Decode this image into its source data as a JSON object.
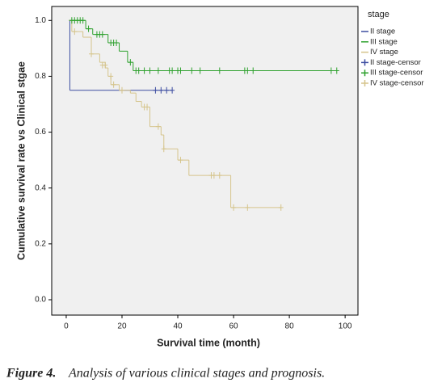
{
  "chart_data": {
    "type": "step",
    "xlabel": "Survival time (month)",
    "ylabel": "Cumulative survival rate vs Clinical stgae",
    "legend_title": "stage",
    "caption_label": "Figure 4.",
    "caption": "Analysis of various clinical stages and prognosis.",
    "xlim": [
      -5.2,
      104.6
    ],
    "ylim": [
      -0.055,
      1.05
    ],
    "xticks": [
      0,
      20,
      40,
      60,
      80,
      100
    ],
    "yticks": [
      {
        "value": 0,
        "label": "0.0"
      },
      {
        "value": 0.2,
        "label": "0.2"
      },
      {
        "value": 0.4,
        "label": "0.4"
      },
      {
        "value": 0.6,
        "label": "0.6"
      },
      {
        "value": 0.8,
        "label": "0.8"
      },
      {
        "value": 1,
        "label": "1.0"
      }
    ],
    "series": [
      {
        "name": "II stage",
        "type": "step",
        "color": "#3d4da1",
        "x": [
          1,
          1.3,
          38
        ],
        "values": [
          1.0,
          0.75,
          0.75
        ]
      },
      {
        "name": "III stage",
        "type": "step",
        "color": "#2ea12e",
        "x": [
          1,
          7,
          9.5,
          15,
          19,
          22,
          24,
          97
        ],
        "values": [
          1.0,
          0.97,
          0.95,
          0.92,
          0.89,
          0.85,
          0.82,
          0.82
        ]
      },
      {
        "name": "IV stage",
        "type": "step",
        "color": "#d5c48b",
        "x": [
          1,
          2,
          6,
          9,
          12,
          14,
          15,
          16,
          19,
          23,
          25,
          27,
          30,
          34,
          35,
          40,
          44,
          59,
          77
        ],
        "values": [
          1.0,
          0.96,
          0.94,
          0.88,
          0.85,
          0.83,
          0.8,
          0.77,
          0.75,
          0.74,
          0.71,
          0.69,
          0.62,
          0.59,
          0.54,
          0.5,
          0.445,
          0.33,
          0.33
        ]
      },
      {
        "name": "II stage-censor",
        "type": "censor",
        "color": "#3d4da1",
        "x": [
          32,
          34,
          36,
          38
        ],
        "values": [
          0.75,
          0.75,
          0.75,
          0.75
        ]
      },
      {
        "name": "III stage-censor",
        "type": "censor",
        "color": "#2ea12e",
        "x": [
          2,
          3,
          4,
          5,
          6,
          8,
          11,
          12,
          13,
          16,
          17,
          18,
          23,
          25,
          26,
          28,
          30,
          33,
          37,
          38,
          40,
          41,
          45,
          48,
          55,
          64,
          65,
          67,
          95,
          97
        ],
        "values": [
          1.0,
          1.0,
          1.0,
          1.0,
          1.0,
          0.97,
          0.95,
          0.95,
          0.95,
          0.92,
          0.92,
          0.92,
          0.85,
          0.82,
          0.82,
          0.82,
          0.82,
          0.82,
          0.82,
          0.82,
          0.82,
          0.82,
          0.82,
          0.82,
          0.82,
          0.82,
          0.82,
          0.82,
          0.82,
          0.82
        ]
      },
      {
        "name": "IV stage-censor",
        "type": "censor",
        "color": "#d5c48b",
        "x": [
          3,
          9,
          13,
          14,
          16,
          17,
          20,
          28,
          29,
          33,
          35,
          41,
          52,
          53,
          55,
          60,
          65,
          77
        ],
        "values": [
          0.96,
          0.88,
          0.84,
          0.84,
          0.8,
          0.77,
          0.75,
          0.69,
          0.69,
          0.62,
          0.54,
          0.5,
          0.445,
          0.445,
          0.445,
          0.33,
          0.33,
          0.33
        ]
      }
    ]
  }
}
